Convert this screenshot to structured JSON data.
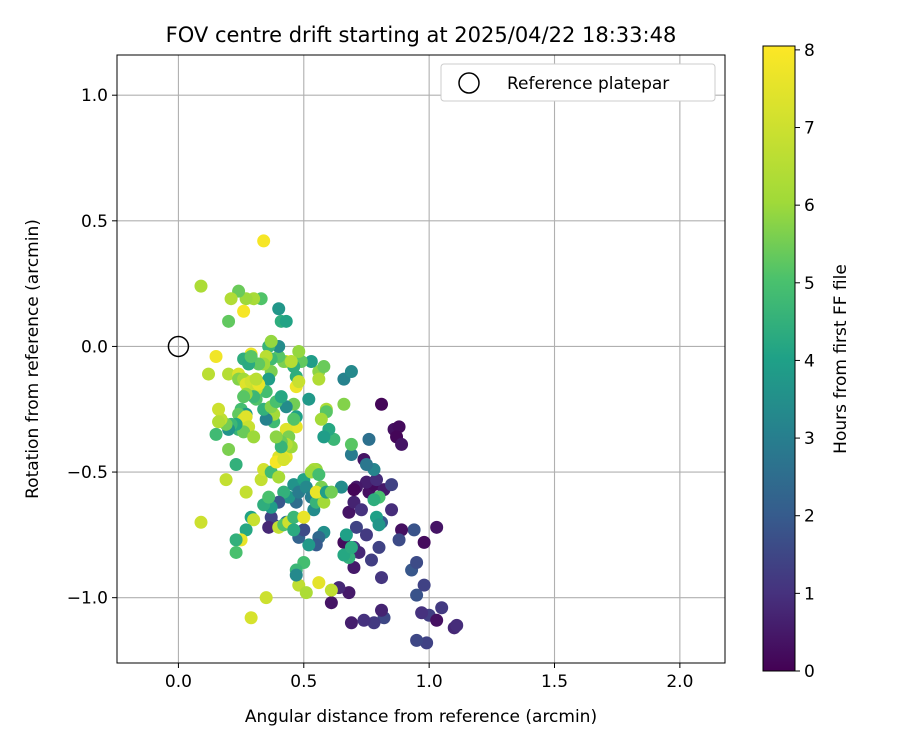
{
  "chart_data": {
    "type": "scatter",
    "title": "FOV centre drift starting at 2025/04/22 18:33:48",
    "xlabel": "Angular distance from reference (arcmin)",
    "ylabel": "Rotation from reference (arcmin)",
    "xlim": [
      -0.245,
      2.18
    ],
    "ylim": [
      -1.26,
      1.16
    ],
    "xticks": [
      0.0,
      0.5,
      1.0,
      1.5,
      2.0
    ],
    "xtick_labels": [
      "0.0",
      "0.5",
      "1.0",
      "1.5",
      "2.0"
    ],
    "yticks": [
      -1.0,
      -0.5,
      0.0,
      0.5,
      1.0
    ],
    "ytick_labels": [
      "−1.0",
      "−0.5",
      "0.0",
      "0.5",
      "1.0"
    ],
    "grid": true,
    "legend": {
      "placement": "top-right",
      "entries": [
        "Reference platepar"
      ]
    },
    "reference_point": {
      "x": 0.0,
      "y": 0.0
    },
    "colorbar": {
      "label": "Hours from first FF file",
      "range": [
        0,
        8.05
      ],
      "ticks": [
        0,
        1,
        2,
        3,
        4,
        5,
        6,
        7,
        8
      ],
      "tick_labels": [
        "0",
        "1",
        "2",
        "3",
        "4",
        "5",
        "6",
        "7",
        "8"
      ],
      "colormap": "viridis"
    },
    "points": [
      [
        1.1,
        -1.12,
        0.8
      ],
      [
        1.11,
        -1.11,
        0.9
      ],
      [
        0.99,
        -1.18,
        1.4
      ],
      [
        0.95,
        -1.17,
        1.5
      ],
      [
        1.0,
        -1.07,
        1.3
      ],
      [
        1.03,
        -1.09,
        0.3
      ],
      [
        1.05,
        -1.04,
        1.2
      ],
      [
        0.97,
        -1.06,
        1.0
      ],
      [
        0.95,
        -0.99,
        1.8
      ],
      [
        0.98,
        -0.95,
        1.4
      ],
      [
        0.93,
        -0.89,
        1.9
      ],
      [
        0.95,
        -0.86,
        1.6
      ],
      [
        0.98,
        -0.78,
        0.2
      ],
      [
        1.03,
        -0.72,
        0.4
      ],
      [
        0.94,
        -0.73,
        1.8
      ],
      [
        0.89,
        -0.73,
        0.3
      ],
      [
        0.88,
        -0.77,
        1.6
      ],
      [
        0.85,
        -0.65,
        0.9
      ],
      [
        0.81,
        -0.7,
        2.0
      ],
      [
        0.8,
        -0.8,
        1.4
      ],
      [
        0.81,
        -0.92,
        1.1
      ],
      [
        0.82,
        -1.08,
        1.5
      ],
      [
        0.81,
        -1.05,
        0.7
      ],
      [
        0.78,
        -1.1,
        1.2
      ],
      [
        0.74,
        -1.09,
        1.0
      ],
      [
        0.69,
        -1.1,
        0.6
      ],
      [
        0.68,
        -0.98,
        0.5
      ],
      [
        0.61,
        -1.02,
        0.4
      ],
      [
        0.64,
        -0.96,
        0.8
      ],
      [
        0.66,
        -0.78,
        0.2
      ],
      [
        0.7,
        -0.8,
        1.1
      ],
      [
        0.72,
        -0.82,
        0.8
      ],
      [
        0.7,
        -0.88,
        0.5
      ],
      [
        0.75,
        -0.75,
        1.2
      ],
      [
        0.77,
        -0.85,
        1.3
      ],
      [
        0.71,
        -0.72,
        1.4
      ],
      [
        0.68,
        -0.66,
        0.4
      ],
      [
        0.7,
        -0.62,
        0.7
      ],
      [
        0.73,
        -0.65,
        1.0
      ],
      [
        0.76,
        -0.58,
        0.3
      ],
      [
        0.78,
        -0.55,
        0.2
      ],
      [
        0.75,
        -0.54,
        0.6
      ],
      [
        0.71,
        -0.56,
        0.5
      ],
      [
        0.7,
        -0.57,
        0.1
      ],
      [
        0.82,
        -0.57,
        0.5
      ],
      [
        0.85,
        -0.55,
        1.4
      ],
      [
        0.79,
        -0.53,
        0.9
      ],
      [
        0.86,
        -0.33,
        0.3
      ],
      [
        0.88,
        -0.32,
        0.2
      ],
      [
        0.87,
        -0.36,
        0.1
      ],
      [
        0.89,
        -0.39,
        0.4
      ],
      [
        0.81,
        -0.23,
        0.1
      ],
      [
        0.74,
        -0.45,
        0.4
      ],
      [
        0.76,
        -0.37,
        2.6
      ],
      [
        0.78,
        -0.49,
        3.2
      ],
      [
        0.75,
        -0.47,
        2.8
      ],
      [
        0.69,
        -0.43,
        2.9
      ],
      [
        0.65,
        -0.56,
        3.4
      ],
      [
        0.66,
        -0.13,
        3.1
      ],
      [
        0.69,
        -0.1,
        3.3
      ],
      [
        0.69,
        -0.39,
        5.2
      ],
      [
        0.66,
        -0.23,
        5.7
      ],
      [
        0.8,
        -0.6,
        5.0
      ],
      [
        0.79,
        -0.68,
        4.0
      ],
      [
        0.8,
        -0.71,
        3.7
      ],
      [
        0.78,
        -0.61,
        4.4
      ],
      [
        0.67,
        -0.75,
        4.0
      ],
      [
        0.68,
        -0.84,
        4.5
      ],
      [
        0.66,
        -0.83,
        4.2
      ],
      [
        0.69,
        -0.8,
        4.3
      ],
      [
        0.58,
        -0.74,
        3.5
      ],
      [
        0.56,
        -0.76,
        2.4
      ],
      [
        0.55,
        -0.79,
        2.0
      ],
      [
        0.52,
        -0.79,
        3.8
      ],
      [
        0.48,
        -0.76,
        2.2
      ],
      [
        0.5,
        -0.73,
        1.6
      ],
      [
        0.43,
        -0.7,
        2.8
      ],
      [
        0.38,
        -0.71,
        1.8
      ],
      [
        0.37,
        -0.68,
        1.4
      ],
      [
        0.36,
        -0.72,
        0.8
      ],
      [
        0.4,
        -0.72,
        6.8
      ],
      [
        0.42,
        -0.71,
        5.1
      ],
      [
        0.44,
        -0.7,
        7.0
      ],
      [
        0.46,
        -0.68,
        4.7
      ],
      [
        0.46,
        -0.73,
        4.3
      ],
      [
        0.47,
        -0.62,
        2.5
      ],
      [
        0.44,
        -0.6,
        3.7
      ],
      [
        0.42,
        -0.58,
        4.5
      ],
      [
        0.4,
        -0.62,
        1.9
      ],
      [
        0.37,
        -0.64,
        3.9
      ],
      [
        0.34,
        -0.63,
        4.4
      ],
      [
        0.36,
        -0.6,
        5.0
      ],
      [
        0.33,
        -0.53,
        6.8
      ],
      [
        0.34,
        -0.49,
        7.1
      ],
      [
        0.37,
        -0.5,
        4.8
      ],
      [
        0.4,
        -0.44,
        7.3
      ],
      [
        0.42,
        -0.45,
        7.8
      ],
      [
        0.43,
        -0.44,
        7.5
      ],
      [
        0.39,
        -0.46,
        7.9
      ],
      [
        0.4,
        -0.52,
        6.2
      ],
      [
        0.46,
        -0.55,
        3.6
      ],
      [
        0.48,
        -0.58,
        2.9
      ],
      [
        0.5,
        -0.53,
        4.1
      ],
      [
        0.51,
        -0.56,
        3.3
      ],
      [
        0.53,
        -0.6,
        3.0
      ],
      [
        0.54,
        -0.65,
        3.4
      ],
      [
        0.55,
        -0.62,
        4.6
      ],
      [
        0.58,
        -0.62,
        6.1
      ],
      [
        0.57,
        -0.56,
        5.6
      ],
      [
        0.55,
        -0.58,
        7.6
      ],
      [
        0.55,
        -0.49,
        5.9
      ],
      [
        0.54,
        -0.49,
        6.2
      ],
      [
        0.53,
        -0.5,
        6.0
      ],
      [
        0.56,
        -0.51,
        4.9
      ],
      [
        0.59,
        -0.58,
        3.9
      ],
      [
        0.61,
        -0.58,
        5.5
      ],
      [
        0.62,
        -0.37,
        4.7
      ],
      [
        0.6,
        -0.33,
        4.2
      ],
      [
        0.58,
        -0.36,
        3.9
      ],
      [
        0.59,
        -0.25,
        6.3
      ],
      [
        0.59,
        -0.26,
        5.2
      ],
      [
        0.57,
        -0.29,
        6.1
      ],
      [
        0.52,
        -0.21,
        3.8
      ],
      [
        0.56,
        -0.1,
        5.8
      ],
      [
        0.58,
        -0.08,
        5.4
      ],
      [
        0.56,
        -0.13,
        6.4
      ],
      [
        0.53,
        -0.06,
        3.9
      ],
      [
        0.49,
        -0.06,
        5.3
      ],
      [
        0.48,
        -0.02,
        5.9
      ],
      [
        0.47,
        -0.12,
        4.4
      ],
      [
        0.47,
        -0.16,
        7.7
      ],
      [
        0.48,
        -0.14,
        6.9
      ],
      [
        0.46,
        -0.23,
        5.5
      ],
      [
        0.47,
        -0.28,
        4.0
      ],
      [
        0.47,
        -0.32,
        7.6
      ],
      [
        0.46,
        -0.29,
        5.1
      ],
      [
        0.43,
        -0.24,
        3.4
      ],
      [
        0.43,
        -0.33,
        7.4
      ],
      [
        0.44,
        -0.36,
        5.6
      ],
      [
        0.45,
        -0.4,
        6.0
      ],
      [
        0.43,
        -0.39,
        6.5
      ],
      [
        0.41,
        -0.38,
        5.4
      ],
      [
        0.41,
        -0.4,
        4.6
      ],
      [
        0.42,
        -0.45,
        7.2
      ],
      [
        0.38,
        -0.3,
        4.8
      ],
      [
        0.39,
        -0.36,
        5.8
      ],
      [
        0.38,
        -0.27,
        6.1
      ],
      [
        0.35,
        -0.29,
        3.1
      ],
      [
        0.34,
        -0.25,
        4.5
      ],
      [
        0.37,
        -0.24,
        5.7
      ],
      [
        0.39,
        -0.22,
        5.0
      ],
      [
        0.41,
        -0.2,
        4.2
      ],
      [
        0.43,
        -0.06,
        7.9
      ],
      [
        0.46,
        -0.08,
        4.4
      ],
      [
        0.42,
        -0.06,
        5.6
      ],
      [
        0.4,
        -0.04,
        5.2
      ],
      [
        0.41,
        0.1,
        4.4
      ],
      [
        0.43,
        0.1,
        4.1
      ],
      [
        0.4,
        0.15,
        3.7
      ],
      [
        0.4,
        0.0,
        3.4
      ],
      [
        0.37,
        -0.05,
        4.8
      ],
      [
        0.37,
        -0.1,
        5.6
      ],
      [
        0.36,
        -0.13,
        3.9
      ],
      [
        0.35,
        -0.18,
        4.9
      ],
      [
        0.36,
        0.0,
        4.6
      ],
      [
        0.37,
        0.02,
        5.9
      ],
      [
        0.35,
        -0.04,
        6.6
      ],
      [
        0.34,
        -0.07,
        6.0
      ],
      [
        0.32,
        -0.07,
        5.3
      ],
      [
        0.29,
        -0.03,
        7.7
      ],
      [
        0.33,
        0.19,
        5.1
      ],
      [
        0.3,
        0.19,
        6.2
      ],
      [
        0.27,
        0.19,
        6.0
      ],
      [
        0.26,
        0.14,
        7.9
      ],
      [
        0.24,
        0.22,
        5.4
      ],
      [
        0.21,
        0.19,
        6.4
      ],
      [
        0.2,
        0.1,
        5.3
      ],
      [
        0.09,
        0.24,
        6.3
      ],
      [
        0.12,
        -0.11,
        6.6
      ],
      [
        0.15,
        -0.04,
        7.8
      ],
      [
        0.2,
        -0.11,
        6.5
      ],
      [
        0.24,
        -0.11,
        7.3
      ],
      [
        0.24,
        -0.13,
        5.7
      ],
      [
        0.26,
        -0.13,
        6.1
      ],
      [
        0.27,
        -0.15,
        7.4
      ],
      [
        0.29,
        -0.14,
        7.1
      ],
      [
        0.31,
        -0.17,
        6.9
      ],
      [
        0.32,
        -0.15,
        7.6
      ],
      [
        0.31,
        -0.13,
        6.6
      ],
      [
        0.26,
        -0.05,
        4.4
      ],
      [
        0.28,
        -0.07,
        4.3
      ],
      [
        0.29,
        -0.04,
        5.2
      ],
      [
        0.31,
        -0.21,
        5.1
      ],
      [
        0.3,
        -0.2,
        4.7
      ],
      [
        0.27,
        -0.19,
        5.9
      ],
      [
        0.26,
        -0.2,
        5.2
      ],
      [
        0.25,
        -0.25,
        4.9
      ],
      [
        0.27,
        -0.27,
        3.8
      ],
      [
        0.24,
        -0.27,
        5.3
      ],
      [
        0.24,
        -0.33,
        4.6
      ],
      [
        0.26,
        -0.29,
        7.1
      ],
      [
        0.27,
        -0.28,
        7.4
      ],
      [
        0.28,
        -0.32,
        6.9
      ],
      [
        0.26,
        -0.34,
        5.4
      ],
      [
        0.23,
        -0.31,
        4.2
      ],
      [
        0.21,
        -0.31,
        4.7
      ],
      [
        0.2,
        -0.33,
        3.6
      ],
      [
        0.19,
        -0.31,
        5.5
      ],
      [
        0.17,
        -0.29,
        6.7
      ],
      [
        0.16,
        -0.25,
        7.0
      ],
      [
        0.16,
        -0.3,
        6.4
      ],
      [
        0.15,
        -0.35,
        4.8
      ],
      [
        0.2,
        -0.41,
        5.6
      ],
      [
        0.23,
        -0.47,
        4.5
      ],
      [
        0.19,
        -0.53,
        6.8
      ],
      [
        0.27,
        -0.58,
        6.8
      ],
      [
        0.3,
        -0.36,
        6.0
      ],
      [
        0.29,
        -0.68,
        4.1
      ],
      [
        0.3,
        -0.69,
        6.9
      ],
      [
        0.27,
        -0.73,
        4.2
      ],
      [
        0.25,
        -0.77,
        7.6
      ],
      [
        0.23,
        -0.77,
        4.5
      ],
      [
        0.23,
        -0.82,
        5.0
      ],
      [
        0.09,
        -0.7,
        7.0
      ],
      [
        0.35,
        -1.0,
        7.0
      ],
      [
        0.29,
        -1.08,
        7.2
      ],
      [
        0.48,
        -0.95,
        6.7
      ],
      [
        0.51,
        -0.98,
        6.3
      ],
      [
        0.56,
        -0.94,
        7.5
      ],
      [
        0.61,
        -0.97,
        6.7
      ],
      [
        0.5,
        -0.86,
        4.9
      ],
      [
        0.47,
        -0.89,
        4.7
      ],
      [
        0.47,
        -0.91,
        3.3
      ],
      [
        0.5,
        -0.68,
        7.6
      ],
      [
        0.45,
        -0.06,
        6.5
      ],
      [
        0.34,
        0.42,
        7.9
      ]
    ]
  }
}
